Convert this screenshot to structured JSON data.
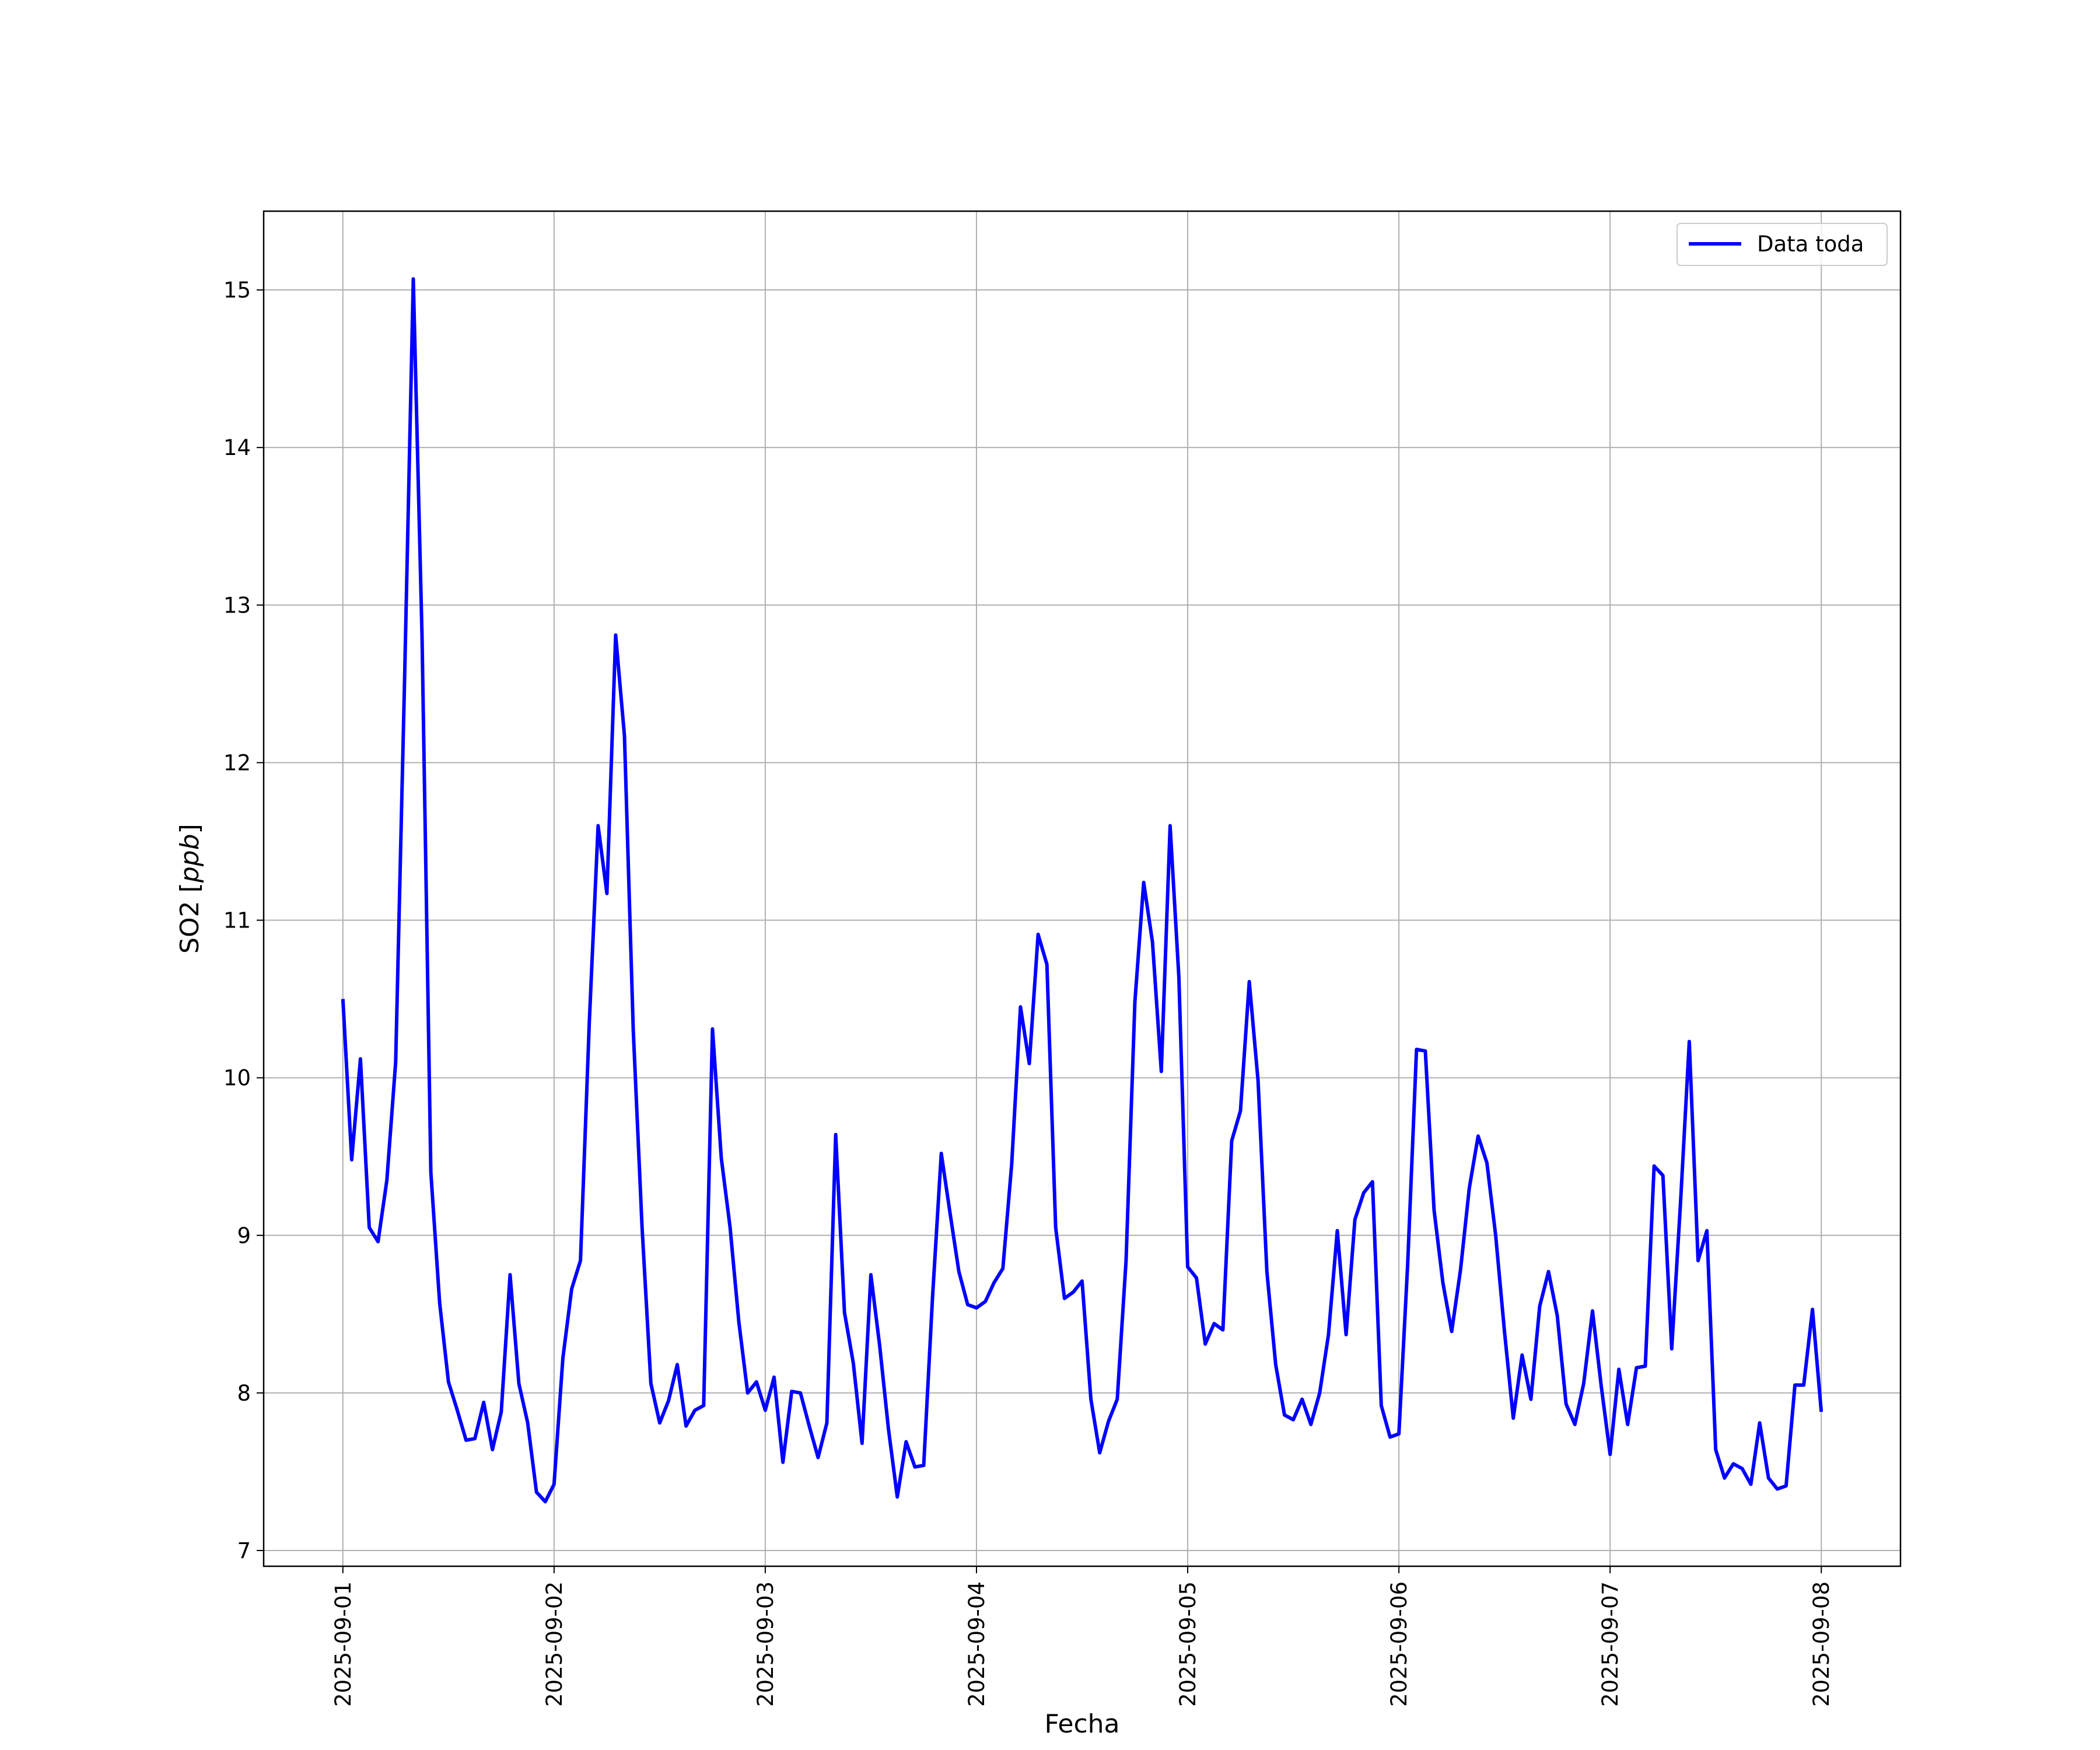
{
  "chart_data": {
    "type": "line",
    "title": "",
    "xlabel": "Fecha",
    "ylabel": "SO2 [ppb]",
    "ylabel_parts": [
      "SO2 [",
      "ppb",
      "]"
    ],
    "ylim": [
      6.9,
      15.5
    ],
    "xlim": [
      "2025-08-31T15:00",
      "2025-09-08T09:00"
    ],
    "yticks": [
      7,
      8,
      9,
      10,
      11,
      12,
      13,
      14,
      15
    ],
    "xticks": [
      "2025-09-01",
      "2025-09-02",
      "2025-09-03",
      "2025-09-04",
      "2025-09-05",
      "2025-09-06",
      "2025-09-07",
      "2025-09-08"
    ],
    "grid": true,
    "legend": {
      "position": "top-right"
    },
    "series": [
      {
        "name": "Data toda",
        "color": "#0000ff",
        "x_start": "2025-09-01T00:00",
        "x_step_hours": 1,
        "values": [
          10.5,
          9.48,
          10.12,
          9.05,
          8.96,
          9.35,
          10.1,
          12.5,
          15.07,
          12.8,
          9.4,
          8.57,
          8.07,
          7.89,
          7.7,
          7.71,
          7.94,
          7.64,
          7.88,
          8.75,
          8.06,
          7.81,
          7.37,
          7.31,
          7.42,
          8.22,
          8.66,
          8.84,
          10.35,
          11.6,
          11.17,
          12.81,
          12.17,
          10.3,
          9.05,
          8.06,
          7.81,
          7.95,
          8.18,
          7.79,
          7.89,
          7.92,
          10.31,
          9.49,
          9.05,
          8.45,
          8.0,
          8.07,
          7.89,
          8.1,
          7.56,
          8.01,
          8.0,
          7.79,
          7.59,
          7.81,
          9.64,
          8.51,
          8.19,
          7.68,
          8.75,
          8.3,
          7.77,
          7.34,
          7.69,
          7.53,
          7.54,
          8.6,
          9.52,
          9.14,
          8.77,
          8.56,
          8.54,
          8.58,
          8.7,
          8.79,
          9.45,
          10.45,
          10.09,
          10.91,
          10.72,
          9.05,
          8.6,
          8.64,
          8.71,
          7.96,
          7.62,
          7.82,
          7.96,
          8.84,
          10.48,
          11.24,
          10.86,
          10.04,
          11.6,
          10.64,
          8.8,
          8.73,
          8.31,
          8.44,
          8.4,
          9.6,
          9.79,
          10.61,
          9.98,
          8.77,
          8.18,
          7.86,
          7.83,
          7.96,
          7.8,
          8.0,
          8.37,
          9.03,
          8.37,
          9.1,
          9.27,
          9.34,
          7.92,
          7.72,
          7.74,
          8.82,
          10.18,
          10.17,
          9.16,
          8.7,
          8.39,
          8.78,
          9.3,
          9.63,
          9.46,
          9.0,
          8.39,
          7.84,
          8.24,
          7.96,
          8.55,
          8.77,
          8.49,
          7.93,
          7.8,
          8.06,
          8.52,
          8.04,
          7.61,
          8.15,
          7.8,
          8.16,
          8.17,
          9.44,
          9.38,
          8.28,
          9.2,
          10.23,
          8.84,
          9.03,
          7.64,
          7.46,
          7.55,
          7.52,
          7.42,
          7.81,
          7.46,
          7.39,
          7.41,
          8.05,
          8.05,
          8.53,
          7.88
        ]
      }
    ]
  }
}
